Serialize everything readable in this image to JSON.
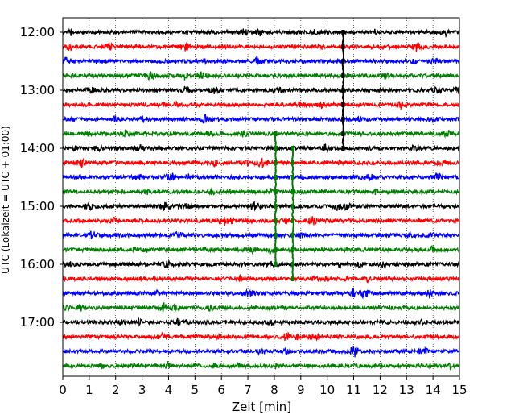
{
  "chart_data": {
    "type": "line",
    "chart_kind": "helicorder seismogram",
    "xlabel": "Zeit  [min]",
    "ylabel": "UTC (Lokalzeit = UTC + 01:00)",
    "xlim": [
      0,
      15
    ],
    "x_ticks": [
      0,
      1,
      2,
      3,
      4,
      5,
      6,
      7,
      8,
      9,
      10,
      11,
      12,
      13,
      14,
      15
    ],
    "y_tick_labels": [
      "12:00",
      "13:00",
      "14:00",
      "15:00",
      "16:00",
      "17:00"
    ],
    "traces_per_hour": 4,
    "trace_count": 24,
    "trace_start_times": [
      "12:00",
      "12:15",
      "12:30",
      "12:45",
      "13:00",
      "13:15",
      "13:30",
      "13:45",
      "14:00",
      "14:15",
      "14:30",
      "14:45",
      "15:00",
      "15:15",
      "15:30",
      "15:45",
      "16:00",
      "16:15",
      "16:30",
      "16:45",
      "17:00",
      "17:15",
      "17:30",
      "17:45"
    ],
    "color_cycle": [
      "#000000",
      "#ff0000",
      "#0000ff",
      "#008000"
    ],
    "vertical_grid": "dotted",
    "events": [
      {
        "start_trace": 0,
        "end_trace": 8,
        "minute": 10.6,
        "color": "#000000"
      },
      {
        "start_trace": 7,
        "end_trace": 16,
        "minute": 8.05,
        "color": "#008000"
      },
      {
        "start_trace": 8,
        "end_trace": 17,
        "minute": 8.7,
        "color": "#008000"
      }
    ]
  }
}
